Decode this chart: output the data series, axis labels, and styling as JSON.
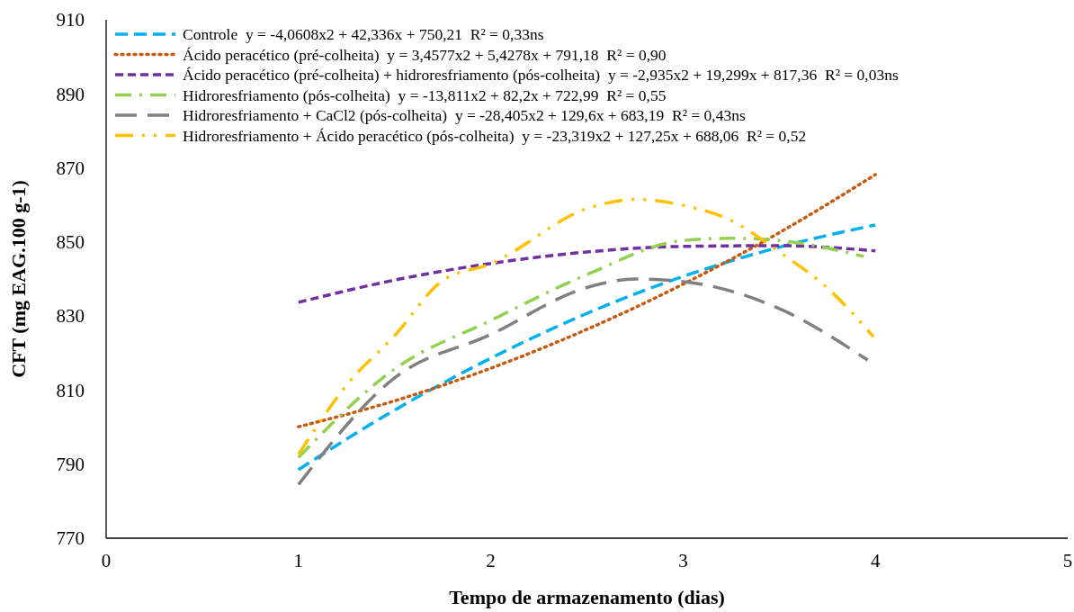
{
  "chart_data": {
    "type": "line",
    "xlabel": "Tempo de armazenamento (dias)",
    "ylabel": "CFT (mg EAG.100 g-1)",
    "xlim": [
      0,
      5
    ],
    "xticks": [
      0,
      1,
      2,
      3,
      4,
      5
    ],
    "ylim": [
      770,
      910
    ],
    "yticks": [
      770,
      790,
      810,
      830,
      850,
      870,
      890,
      910
    ],
    "grid": false,
    "legend": "top left",
    "marker": "none",
    "series": [
      {
        "name": "Controle  y = -4,0608x2 + 42,336x + 750,21  R² = 0,33ns",
        "color": "#00b0f0",
        "line_style": "dashed",
        "x": [
          1,
          1.5,
          2,
          2.5,
          3,
          3.5,
          4
        ],
        "values": [
          788.5,
          804.6,
          818.6,
          830.7,
          840.7,
          848.6,
          854.6
        ]
      },
      {
        "name": "Ácido peracético (pré-colheita)  y = 3,4577x2 + 5,4278x + 791,18  R² = 0,90",
        "color": "#c55a11",
        "line_style": "dotted",
        "x": [
          1,
          1.5,
          2,
          2.5,
          3,
          3.5,
          4
        ],
        "values": [
          800.1,
          807.1,
          815.9,
          826.4,
          838.6,
          852.5,
          868.2
        ]
      },
      {
        "name": "Ácido peracético (pré-colheita) + hidroresfriamento (pós-colheita)  y = -2,935x2 + 19,299x + 817,36  R² = 0,03ns",
        "color": "#7030a0",
        "line_style": "dashed",
        "x": [
          1,
          1.5,
          2,
          2.5,
          3,
          3.5,
          4
        ],
        "values": [
          833.7,
          839.7,
          844.2,
          847.3,
          848.8,
          849,
          847.6
        ]
      },
      {
        "name": "Hidroresfriamento (pós-colheita)  y = -13,811x2 + 82,2x + 722,99  R² = 0,55",
        "color": "#92d050",
        "line_style": "dashed",
        "x": [
          1,
          1.5,
          2,
          2.5,
          3,
          3.25,
          3.5,
          3.94
        ],
        "values": [
          791.8,
          815.7,
          828.8,
          841.2,
          850.4,
          851,
          850.4,
          846.1
        ]
      },
      {
        "name": "Hidroresfriamento + CaCl2 (pós-colheita)  y = -28,405x2 + 129,6x + 683,19  R² = 0,43ns",
        "color": "#808080",
        "line_style": "dashed",
        "x": [
          1,
          1.5,
          2,
          2.5,
          2.75,
          3,
          3.5,
          3.96
        ],
        "values": [
          784.5,
          813.3,
          825,
          837.7,
          840,
          839.3,
          832,
          818.1
        ]
      },
      {
        "name": "Hidroresfriamento + Ácido peracético (pós-colheita)  y = -23,319x2 + 127,25x + 688,06  R² = 0,52",
        "color": "#ffc000",
        "line_style": "dashed",
        "x": [
          1,
          1.25,
          1.5,
          1.75,
          2,
          2.5,
          2.75,
          3,
          3.25,
          3.5,
          3.75,
          3.99
        ],
        "values": [
          792.6,
          811.3,
          824.7,
          839.6,
          844.1,
          859,
          861.5,
          859.9,
          855.8,
          847.3,
          837.6,
          824.4
        ]
      }
    ]
  }
}
